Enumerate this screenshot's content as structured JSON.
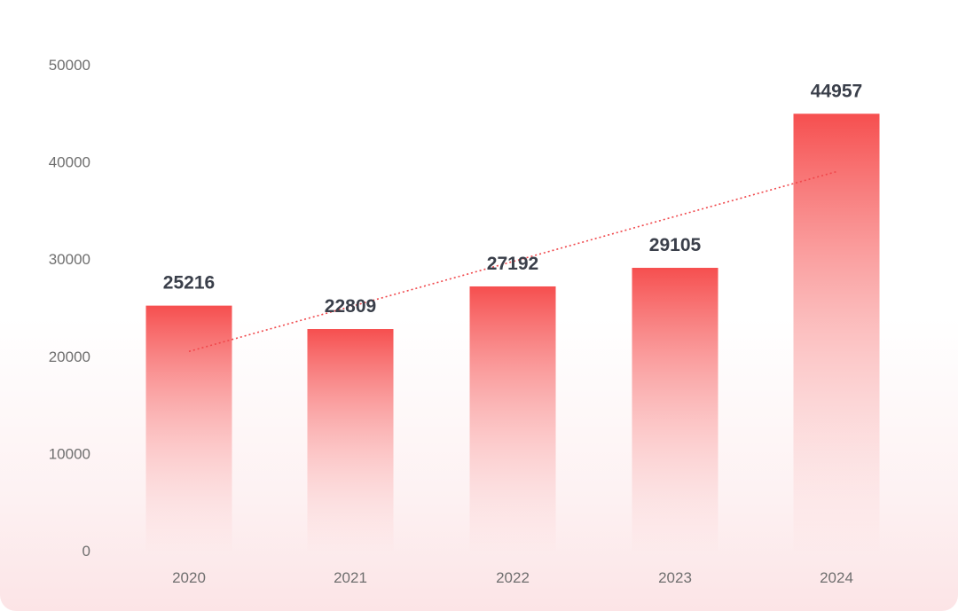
{
  "chart_data": {
    "type": "bar",
    "categories": [
      "2020",
      "2021",
      "2022",
      "2023",
      "2024"
    ],
    "values": [
      25216,
      22809,
      27192,
      29105,
      44957
    ],
    "data_labels": [
      "25216",
      "22809",
      "27192",
      "29105",
      "44957"
    ],
    "y_ticks": [
      "0",
      "10000",
      "20000",
      "30000",
      "40000",
      "50000"
    ],
    "ylim": [
      0,
      50000
    ],
    "trendline": {
      "style": "dotted",
      "from": 20500,
      "to": 39000
    },
    "grid": false,
    "legend": "none",
    "colors": {
      "bar_top": "#f64f4f",
      "bar_bottom": "#fde7e8",
      "trendline": "#f0474b",
      "label": "#3a3f4a",
      "tick": "#6f6f6f"
    }
  }
}
